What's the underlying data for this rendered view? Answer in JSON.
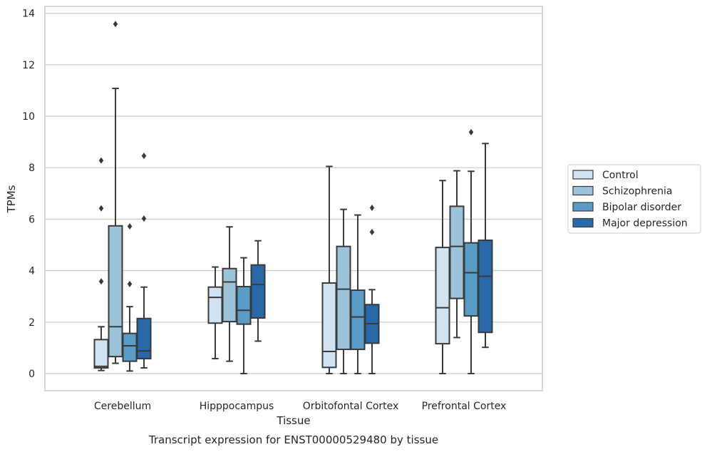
{
  "chart_data": {
    "type": "box",
    "title": "",
    "caption": "Transcript expression for ENST00000529480 by tissue",
    "xlabel": "Tissue",
    "ylabel": "TPMs",
    "ylim": [
      -0.65,
      14.25
    ],
    "yticks": [
      0,
      2,
      4,
      6,
      8,
      10,
      12,
      14
    ],
    "grid": "horizontal",
    "legend_position": "right",
    "categories": [
      "Cerebellum",
      "Hipppocampus",
      "Orbitofontal Cortex",
      "Prefrontal Cortex"
    ],
    "series": [
      {
        "name": "Control",
        "color": "#d1e2f0",
        "boxes": [
          {
            "whislo": 0.12,
            "q1": 0.22,
            "med": 0.28,
            "q3": 1.32,
            "whishi": 1.82,
            "fliers": [
              3.58,
              6.42,
              8.28
            ]
          },
          {
            "whislo": 0.58,
            "q1": 1.96,
            "med": 2.96,
            "q3": 3.36,
            "whishi": 4.14,
            "fliers": []
          },
          {
            "whislo": 0.0,
            "q1": 0.24,
            "med": 0.86,
            "q3": 3.52,
            "whishi": 8.05,
            "fliers": []
          },
          {
            "whislo": 0.0,
            "q1": 1.16,
            "med": 2.56,
            "q3": 4.9,
            "whishi": 7.5,
            "fliers": []
          }
        ]
      },
      {
        "name": "Schizophrenia",
        "color": "#9dc3da",
        "boxes": [
          {
            "whislo": 0.4,
            "q1": 0.66,
            "med": 1.82,
            "q3": 5.74,
            "whishi": 11.08,
            "fliers": [
              13.58
            ]
          },
          {
            "whislo": 0.48,
            "q1": 2.02,
            "med": 3.56,
            "q3": 4.08,
            "whishi": 5.7,
            "fliers": []
          },
          {
            "whislo": 0.0,
            "q1": 0.94,
            "med": 3.28,
            "q3": 4.94,
            "whishi": 6.38,
            "fliers": []
          },
          {
            "whislo": 1.4,
            "q1": 2.92,
            "med": 4.94,
            "q3": 6.5,
            "whishi": 7.88,
            "fliers": []
          }
        ]
      },
      {
        "name": "Bipolar disorder",
        "color": "#5b9bc8",
        "boxes": [
          {
            "whislo": 0.1,
            "q1": 0.48,
            "med": 1.08,
            "q3": 1.56,
            "whishi": 2.6,
            "fliers": [
              3.48,
              5.72
            ]
          },
          {
            "whislo": 0.0,
            "q1": 1.92,
            "med": 2.46,
            "q3": 3.38,
            "whishi": 4.5,
            "fliers": []
          },
          {
            "whislo": 0.0,
            "q1": 0.94,
            "med": 2.2,
            "q3": 3.24,
            "whishi": 6.16,
            "fliers": []
          },
          {
            "whislo": 0.0,
            "q1": 2.24,
            "med": 3.92,
            "q3": 5.08,
            "whishi": 7.86,
            "fliers": [
              9.38
            ]
          }
        ]
      },
      {
        "name": "Major depression",
        "color": "#2a69a8",
        "boxes": [
          {
            "whislo": 0.22,
            "q1": 0.58,
            "med": 0.88,
            "q3": 2.14,
            "whishi": 3.36,
            "fliers": [
              6.02,
              8.46
            ]
          },
          {
            "whislo": 1.26,
            "q1": 2.16,
            "med": 3.46,
            "q3": 4.22,
            "whishi": 5.16,
            "fliers": []
          },
          {
            "whislo": 0.0,
            "q1": 1.18,
            "med": 1.94,
            "q3": 2.68,
            "whishi": 3.26,
            "fliers": [
              5.5,
              6.44
            ]
          },
          {
            "whislo": 1.02,
            "q1": 1.6,
            "med": 3.78,
            "q3": 5.18,
            "whishi": 8.94,
            "fliers": []
          }
        ]
      }
    ]
  }
}
